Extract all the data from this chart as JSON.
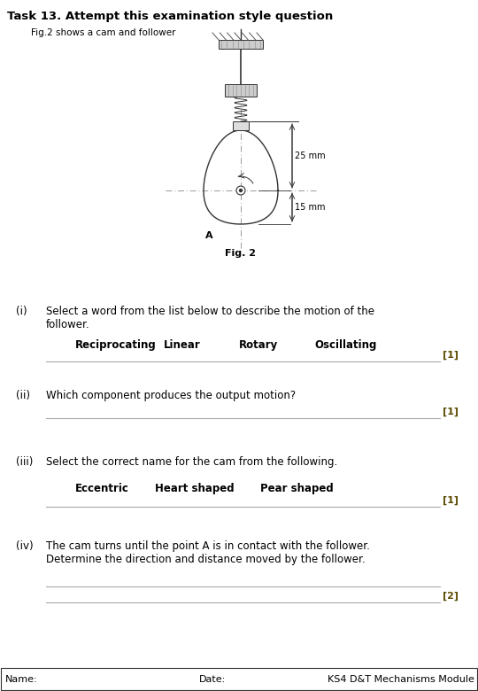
{
  "title": "Task 13. Attempt this examination style question",
  "subtitle": "Fig.2 shows a cam and follower",
  "fig_label": "Fig. 2",
  "q1_label": "(i)",
  "q1_text": "Select a word from the list below to describe the motion of the\nfollower.",
  "q1_options": [
    "Reciprocating",
    "Linear",
    "Rotary",
    "Oscillating"
  ],
  "q1_mark": "[1]",
  "q2_label": "(ii)",
  "q2_text": "Which component produces the output motion?",
  "q2_mark": "[1]",
  "q3_label": "(iii)",
  "q3_text": "Select the correct name for the cam from the following.",
  "q3_options": [
    "Eccentric",
    "Heart shaped",
    "Pear shaped"
  ],
  "q3_mark": "[1]",
  "q4_label": "(iv)",
  "q4_text": "The cam turns until the point A is in contact with the follower.\nDetermine the direction and distance moved by the follower.",
  "q4_mark": "[2]",
  "footer_name": "Name:",
  "footer_date": "Date:",
  "footer_module": "KS4 D&T Mechanisms Module",
  "dim1": "25 mm",
  "dim2": "15 mm",
  "point_a": "A",
  "bg_color": "#ffffff",
  "text_color": "#000000",
  "mark_color": "#5a4a00",
  "line_color": "#aaaaaa",
  "cam_color": "#333333",
  "dim_line_color": "#333333"
}
